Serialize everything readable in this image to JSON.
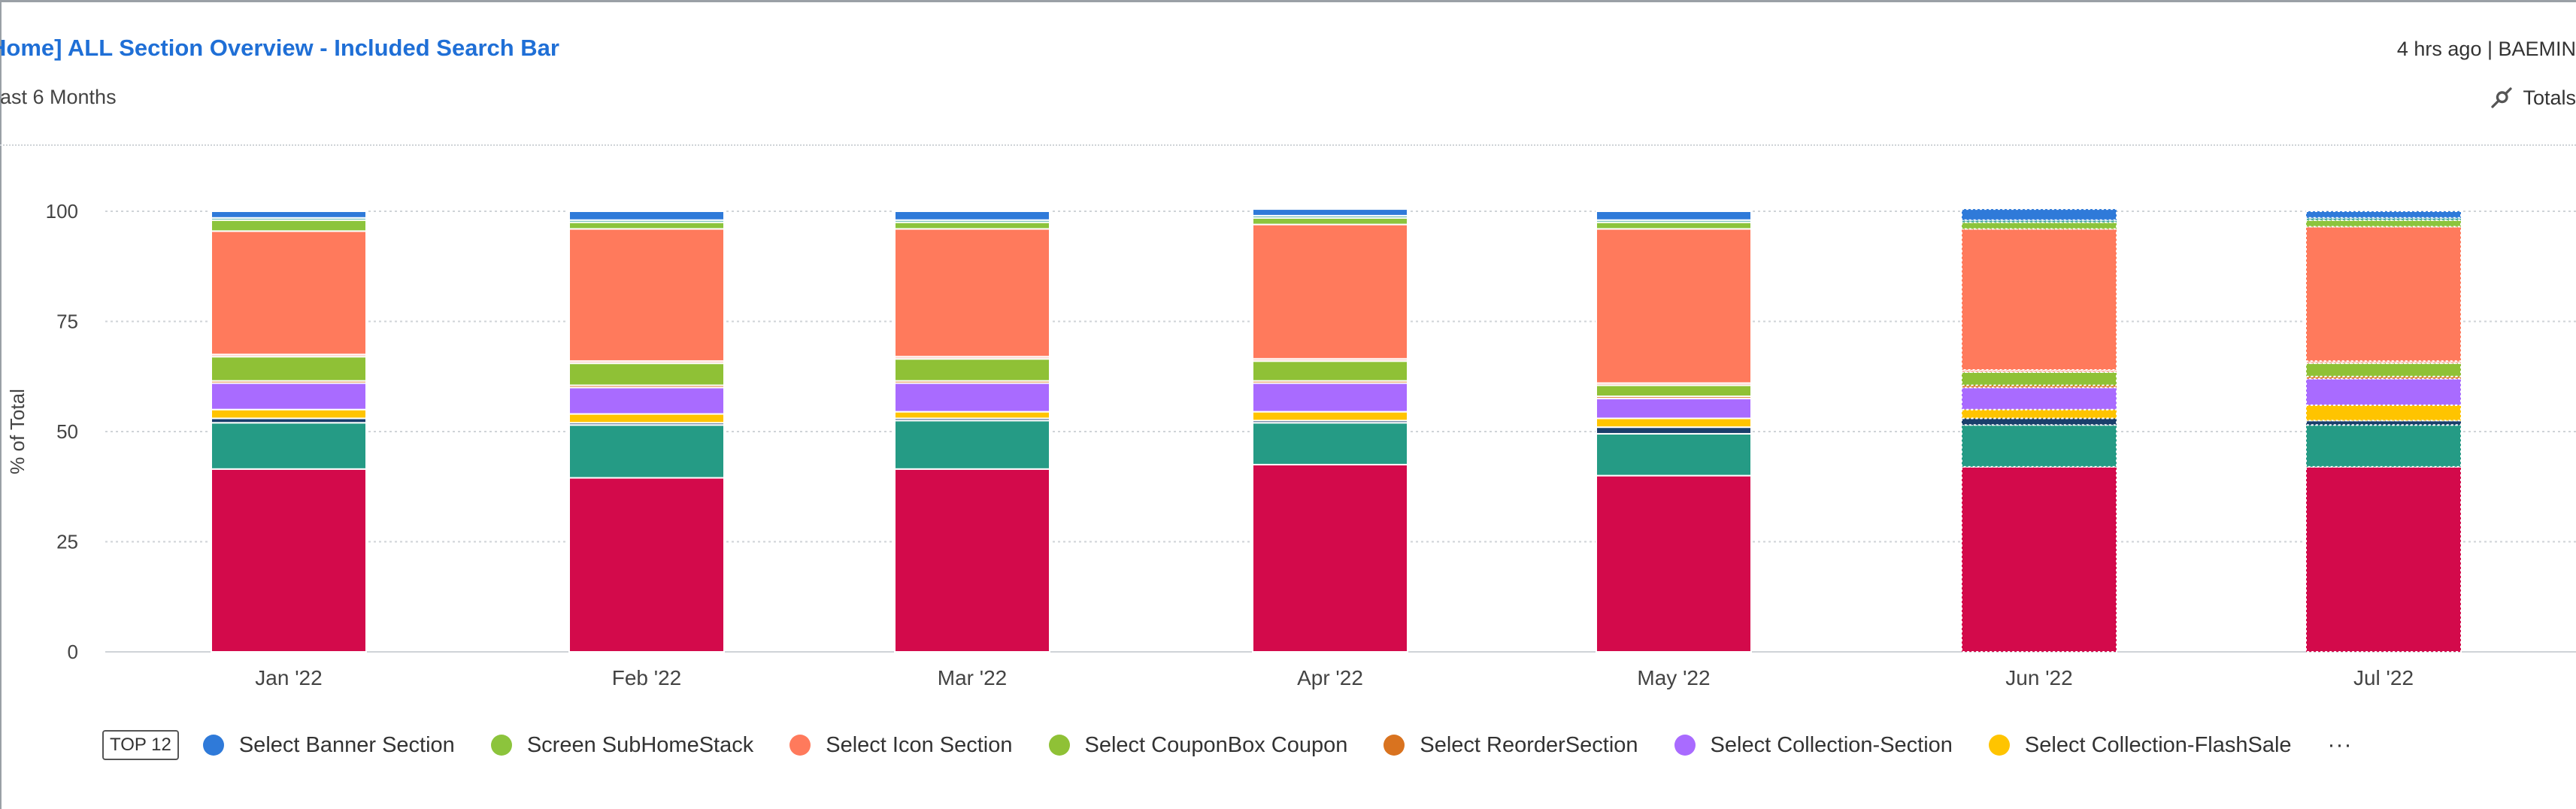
{
  "header": {
    "title": "Home] ALL Section Overview - Included Search Bar",
    "subtitle": "ast 6 Months",
    "meta": "4 hrs ago | BAEMIN",
    "totals_label": "Totals"
  },
  "legend": {
    "badge": "TOP 12",
    "more": "···",
    "items": [
      {
        "label": "Select Banner Section",
        "color": "#2f7ad9"
      },
      {
        "label": "Screen SubHomeStack",
        "color": "#8cc43c"
      },
      {
        "label": "Select Icon Section",
        "color": "#ff7a5c"
      },
      {
        "label": "Select CouponBox Coupon",
        "color": "#8fc136"
      },
      {
        "label": "Select ReorderSection",
        "color": "#d9731f"
      },
      {
        "label": "Select Collection-Section",
        "color": "#a96bff"
      },
      {
        "label": "Select Collection-FlashSale",
        "color": "#ffc400"
      }
    ]
  },
  "chart_data": {
    "type": "bar",
    "stacked": true,
    "ylabel": "% of Total",
    "ylim": [
      0,
      100
    ],
    "yticks": [
      0,
      25,
      50,
      75,
      100
    ],
    "grid": true,
    "categories": [
      "Jan '22",
      "Feb '22",
      "Mar '22",
      "Apr '22",
      "May '22",
      "Jun '22",
      "Jul '22"
    ],
    "series": [
      {
        "name": "",
        "color": "#d30a4b",
        "values": [
          41.5,
          39.5,
          41.5,
          42.5,
          40.0,
          42.0,
          42.0
        ]
      },
      {
        "name": "",
        "color": "#259b85",
        "values": [
          10.5,
          12.0,
          11.0,
          9.5,
          9.5,
          9.5,
          9.5
        ]
      },
      {
        "name": "",
        "color": "#1a3f6b",
        "values": [
          1.0,
          0.5,
          0.5,
          0.5,
          1.5,
          1.5,
          1.0
        ]
      },
      {
        "name": "Select Collection-FlashSale",
        "color": "#ffc400",
        "values": [
          2.0,
          2.0,
          1.5,
          2.0,
          2.0,
          2.0,
          3.5
        ]
      },
      {
        "name": "Select Collection-Section",
        "color": "#a96bff",
        "values": [
          6.0,
          6.0,
          6.5,
          6.5,
          4.5,
          5.0,
          6.0
        ]
      },
      {
        "name": "Select ReorderSection",
        "color": "#d9731f",
        "values": [
          0.5,
          0.5,
          0.5,
          0.5,
          0.5,
          0.5,
          0.5
        ]
      },
      {
        "name": "Select CouponBox Coupon",
        "color": "#8fc136",
        "values": [
          5.5,
          5.0,
          5.0,
          4.5,
          2.5,
          3.0,
          3.0
        ]
      },
      {
        "name": "",
        "color": "#f8b3a3",
        "values": [
          0.5,
          0.5,
          0.5,
          0.5,
          0.5,
          0.5,
          0.5
        ]
      },
      {
        "name": "Select Icon Section",
        "color": "#ff7a5c",
        "values": [
          28.0,
          30.0,
          29.0,
          30.5,
          35.0,
          32.0,
          30.5
        ]
      },
      {
        "name": "Screen SubHomeStack",
        "color": "#8cc43c",
        "values": [
          2.5,
          1.5,
          1.5,
          1.5,
          1.5,
          1.5,
          1.5
        ]
      },
      {
        "name": "",
        "color": "#3aa39b",
        "values": [
          0.5,
          0.5,
          0.5,
          0.5,
          0.5,
          0.5,
          0.5
        ]
      },
      {
        "name": "Select Banner Section",
        "color": "#2f7ad9",
        "values": [
          1.5,
          2.0,
          2.0,
          1.5,
          2.0,
          2.5,
          1.5
        ]
      }
    ]
  }
}
